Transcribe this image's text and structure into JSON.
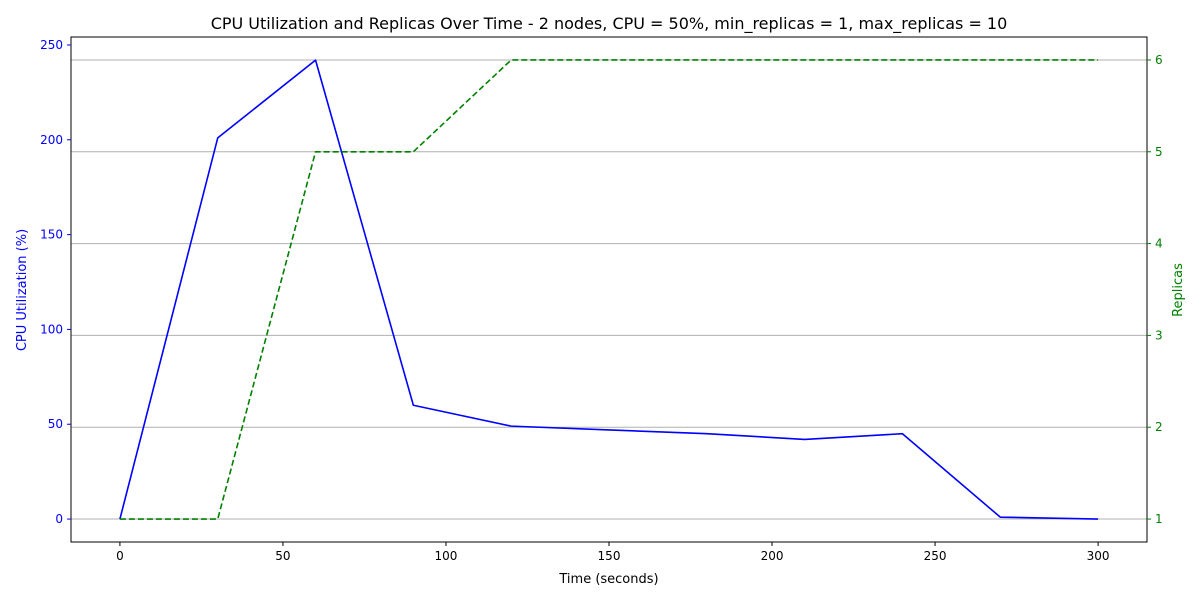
{
  "chart_data": {
    "type": "line",
    "title": "CPU Utilization and Replicas Over Time - 2 nodes, CPU = 50%, min_replicas = 1, max_replicas = 10",
    "xlabel": "Time (seconds)",
    "ylabel_left": "CPU Utilization (%)",
    "ylabel_right": "Replicas",
    "x": [
      0,
      30,
      60,
      90,
      120,
      150,
      180,
      210,
      240,
      270,
      300
    ],
    "xlim": [
      -15,
      315
    ],
    "xticks": [
      0,
      50,
      100,
      150,
      200,
      250,
      300
    ],
    "ylim_left": [
      -12.1,
      254.2
    ],
    "yticks_left": [
      0,
      50,
      100,
      150,
      200,
      250
    ],
    "ylim_right": [
      0.75,
      6.25
    ],
    "yticks_right": [
      1,
      2,
      3,
      4,
      5,
      6
    ],
    "grid": "horizontal lines at right-axis ticks",
    "series": [
      {
        "name": "CPU Utilization (%)",
        "axis": "left",
        "style": "solid",
        "color": "#0000ff",
        "values": [
          0,
          201,
          242,
          60,
          49,
          47,
          45,
          42,
          45,
          1,
          0
        ]
      },
      {
        "name": "Replicas",
        "axis": "right",
        "style": "dashed",
        "color": "#008000",
        "values": [
          1,
          1,
          5,
          5,
          6,
          6,
          6,
          6,
          6,
          6,
          6
        ]
      }
    ]
  }
}
